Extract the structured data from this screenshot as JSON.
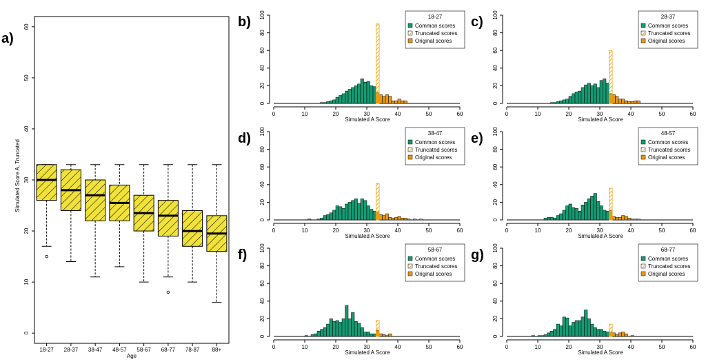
{
  "colors": {
    "box_fill": "#f1e23a",
    "common": "#159a72",
    "truncated_stroke": "#f0a818",
    "original": "#e89712",
    "truncated_fill": "#fff6dd"
  },
  "chart_data": [
    {
      "id": "a",
      "panel_label": "a)",
      "type": "box",
      "xlabel": "Age",
      "ylabel": "Simulated Score A, Truncated",
      "ylim": [
        -2,
        62
      ],
      "yticks": [
        "0",
        "10",
        "20",
        "30",
        "40",
        "50",
        "60"
      ],
      "categories": [
        "18-27",
        "28-37",
        "38-47",
        "48-57",
        "58-67",
        "68-77",
        "78-87",
        "88+"
      ],
      "boxes": [
        {
          "min": 17,
          "q1": 26,
          "median": 30,
          "q3": 33,
          "max": 33,
          "outliers": [
            15
          ]
        },
        {
          "min": 14,
          "q1": 24,
          "median": 28,
          "q3": 32,
          "max": 33,
          "outliers": []
        },
        {
          "min": 11,
          "q1": 22,
          "median": 27,
          "q3": 30,
          "max": 33,
          "outliers": []
        },
        {
          "min": 13,
          "q1": 22,
          "median": 25.5,
          "q3": 29,
          "max": 33,
          "outliers": []
        },
        {
          "min": 10,
          "q1": 20,
          "median": 23.5,
          "q3": 27,
          "max": 33,
          "outliers": []
        },
        {
          "min": 11,
          "q1": 19,
          "median": 23,
          "q3": 26,
          "max": 33,
          "outliers": [
            8
          ]
        },
        {
          "min": 10,
          "q1": 17,
          "median": 20,
          "q3": 24,
          "max": 33,
          "outliers": []
        },
        {
          "min": 6,
          "q1": 16,
          "median": 19.5,
          "q3": 23,
          "max": 33,
          "outliers": []
        }
      ]
    },
    {
      "id": "b",
      "panel_label": "b)",
      "type": "histogram",
      "legend_title": "18-27",
      "xlabel": "Simulated A Score",
      "xlim": [
        0,
        60
      ],
      "ylim": [
        0,
        100
      ],
      "xticks": [
        "0",
        "10",
        "20",
        "30",
        "40",
        "50",
        "60"
      ],
      "yticks": [
        "0",
        "20",
        "40",
        "60",
        "80",
        "100"
      ],
      "legend_entries": [
        "Common scores",
        "Truncated scores",
        "Original scores"
      ],
      "bin_width": 1,
      "common": {
        "x": [
          15,
          16,
          17,
          18,
          19,
          20,
          21,
          22,
          23,
          24,
          25,
          26,
          27,
          28,
          29,
          30,
          31,
          32
        ],
        "y": [
          1,
          1,
          2,
          3,
          4,
          7,
          9,
          11,
          14,
          16,
          18,
          20,
          22,
          28,
          24,
          25,
          20,
          19
        ]
      },
      "truncated": {
        "x": 33,
        "y": 90
      },
      "original": {
        "x": [
          33,
          34,
          35,
          36,
          37,
          38,
          39,
          40,
          41,
          42
        ],
        "y": [
          12,
          10,
          8,
          10,
          8,
          3,
          3,
          5,
          3,
          3
        ]
      }
    },
    {
      "id": "c",
      "panel_label": "c)",
      "type": "histogram",
      "legend_title": "28-37",
      "xlabel": "Simulated A Score",
      "xlim": [
        0,
        60
      ],
      "ylim": [
        0,
        100
      ],
      "xticks": [
        "0",
        "10",
        "20",
        "30",
        "40",
        "50",
        "60"
      ],
      "yticks": [
        "0",
        "20",
        "40",
        "60",
        "80",
        "100"
      ],
      "legend_entries": [
        "Common scores",
        "Truncated scores",
        "Original scores"
      ],
      "bin_width": 1,
      "common": {
        "x": [
          14,
          15,
          16,
          17,
          18,
          19,
          20,
          21,
          22,
          23,
          24,
          25,
          26,
          27,
          28,
          29,
          30,
          31,
          32
        ],
        "y": [
          1,
          1,
          2,
          3,
          4,
          5,
          8,
          11,
          13,
          14,
          18,
          21,
          23,
          20,
          22,
          18,
          26,
          28,
          23
        ]
      },
      "truncated": {
        "x": 33,
        "y": 60
      },
      "original": {
        "x": [
          33,
          34,
          35,
          36,
          37,
          38,
          39,
          40,
          41,
          42
        ],
        "y": [
          11,
          10,
          8,
          5,
          5,
          3,
          2,
          2,
          3,
          3
        ]
      }
    },
    {
      "id": "d",
      "panel_label": "d)",
      "type": "histogram",
      "legend_title": "38-47",
      "xlabel": "Simulated A Score",
      "xlim": [
        0,
        60
      ],
      "ylim": [
        0,
        100
      ],
      "xticks": [
        "0",
        "10",
        "20",
        "30",
        "40",
        "50",
        "60"
      ],
      "yticks": [
        "0",
        "20",
        "40",
        "60",
        "80",
        "100"
      ],
      "legend_entries": [
        "Common scores",
        "Truncated scores",
        "Original scores"
      ],
      "bin_width": 1,
      "common": {
        "x": [
          11,
          14,
          15,
          16,
          17,
          18,
          19,
          20,
          21,
          22,
          23,
          24,
          25,
          26,
          27,
          28,
          29,
          30,
          31,
          32
        ],
        "y": [
          1,
          1,
          2,
          5,
          6,
          8,
          11,
          16,
          15,
          13,
          18,
          20,
          22,
          24,
          19,
          24,
          22,
          16,
          12,
          10
        ]
      },
      "truncated": {
        "x": 33,
        "y": 41
      },
      "original": {
        "x": [
          33,
          34,
          35,
          36,
          37,
          38,
          39,
          40,
          41,
          42,
          43,
          45,
          47
        ],
        "y": [
          9,
          6,
          5,
          7,
          3,
          2,
          3,
          4,
          2,
          2,
          1,
          1,
          1
        ]
      }
    },
    {
      "id": "e",
      "panel_label": "e)",
      "type": "histogram",
      "legend_title": "48-57",
      "xlabel": "Simulated A Score",
      "xlim": [
        0,
        60
      ],
      "ylim": [
        0,
        100
      ],
      "xticks": [
        "0",
        "10",
        "20",
        "30",
        "40",
        "50",
        "60"
      ],
      "yticks": [
        "0",
        "20",
        "40",
        "60",
        "80",
        "100"
      ],
      "legend_entries": [
        "Common scores",
        "Truncated scores",
        "Original scores"
      ],
      "bin_width": 1,
      "common": {
        "x": [
          12,
          13,
          14,
          15,
          16,
          17,
          18,
          19,
          20,
          21,
          22,
          23,
          24,
          25,
          26,
          27,
          28,
          29,
          30,
          31,
          32
        ],
        "y": [
          2,
          3,
          3,
          2,
          5,
          7,
          11,
          16,
          18,
          14,
          13,
          10,
          17,
          20,
          24,
          27,
          30,
          21,
          16,
          11,
          10
        ]
      },
      "truncated": {
        "x": 33,
        "y": 36
      },
      "original": {
        "x": [
          33,
          34,
          35,
          36,
          37,
          38,
          39,
          40,
          41,
          42
        ],
        "y": [
          11,
          4,
          3,
          3,
          5,
          4,
          2,
          1,
          1,
          1
        ]
      }
    },
    {
      "id": "f",
      "panel_label": "f)",
      "type": "histogram",
      "legend_title": "58-67",
      "xlabel": "Simulated A Score",
      "xlim": [
        0,
        60
      ],
      "ylim": [
        0,
        100
      ],
      "xticks": [
        "0",
        "10",
        "20",
        "30",
        "40",
        "50",
        "60"
      ],
      "yticks": [
        "0",
        "20",
        "40",
        "60",
        "80",
        "100"
      ],
      "legend_entries": [
        "Common scores",
        "Truncated scores",
        "Original scores"
      ],
      "bin_width": 1,
      "common": {
        "x": [
          10,
          12,
          13,
          14,
          15,
          16,
          17,
          18,
          19,
          20,
          21,
          22,
          23,
          24,
          25,
          26,
          27,
          28,
          29,
          30,
          31,
          32
        ],
        "y": [
          1,
          2,
          3,
          6,
          8,
          10,
          14,
          20,
          17,
          18,
          16,
          20,
          35,
          20,
          27,
          17,
          15,
          10,
          5,
          5,
          3,
          3
        ]
      },
      "truncated": {
        "x": 33,
        "y": 18
      },
      "original": {
        "x": [
          33,
          34,
          35,
          36,
          37
        ],
        "y": [
          7,
          3,
          2,
          1,
          3
        ]
      }
    },
    {
      "id": "g",
      "panel_label": "g)",
      "type": "histogram",
      "legend_title": "68-77",
      "xlabel": "Simulated A Score",
      "xlim": [
        0,
        60
      ],
      "ylim": [
        0,
        100
      ],
      "xticks": [
        "0",
        "10",
        "20",
        "30",
        "40",
        "50",
        "60"
      ],
      "yticks": [
        "0",
        "20",
        "40",
        "60",
        "80",
        "100"
      ],
      "legend_entries": [
        "Common scores",
        "Truncated scores",
        "Original scores"
      ],
      "bin_width": 1,
      "common": {
        "x": [
          8,
          10,
          11,
          12,
          13,
          14,
          15,
          16,
          17,
          18,
          19,
          20,
          21,
          22,
          23,
          24,
          25,
          26,
          27,
          28,
          29,
          30,
          31,
          32
        ],
        "y": [
          1,
          1,
          1,
          2,
          4,
          6,
          8,
          14,
          12,
          22,
          21,
          12,
          16,
          18,
          18,
          22,
          30,
          20,
          14,
          10,
          8,
          8,
          6,
          5
        ]
      },
      "truncated": {
        "x": 33,
        "y": 14
      },
      "original": {
        "x": [
          33,
          34,
          35,
          36,
          37,
          38,
          40
        ],
        "y": [
          5,
          4,
          2,
          4,
          5,
          3,
          1
        ]
      }
    }
  ]
}
